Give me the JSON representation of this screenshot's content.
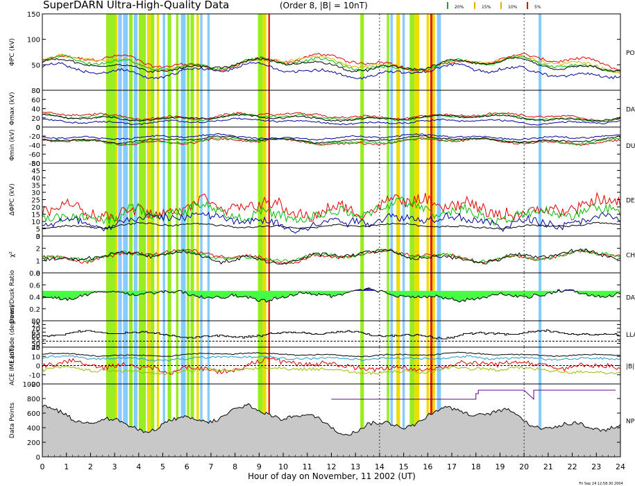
{
  "header": {
    "title": "SuperDARN Ultra-High-Quality Data",
    "subtitle": "(Order 8, |B| = 10nT)",
    "legend": [
      {
        "label": "20%",
        "color": "#1aa31a"
      },
      {
        "label": "15%",
        "color": "#e0b000"
      },
      {
        "label": "10%",
        "color": "#e0b000"
      },
      {
        "label": "5%",
        "color": "#dd0000"
      }
    ]
  },
  "footer": {
    "xlabel": "Hour of day on November, 11 2002 (UT)",
    "stamp": "Fri Sep 24 12:58:30 2004"
  },
  "colors": {
    "lightblue": "#88ccff",
    "green": "#99ee22",
    "gold": "#eedd00",
    "red": "#ee2200",
    "fillgreen": "#44ff44",
    "fillblue": "#2222cc",
    "gray": "#c8c8c8",
    "purple": "#660088"
  },
  "chart_data": {
    "type": "line",
    "xlim": [
      0,
      24
    ],
    "xticks": [
      "0",
      "1",
      "2",
      "3",
      "4",
      "5",
      "6",
      "7",
      "8",
      "9",
      "10",
      "11",
      "12",
      "13",
      "14",
      "15",
      "16",
      "17",
      "18",
      "19",
      "20",
      "21",
      "22",
      "23",
      "24"
    ],
    "dashed_hours": [
      14,
      20
    ],
    "shading": [
      {
        "from": 2.65,
        "to": 3.05,
        "color": "green"
      },
      {
        "from": 3.05,
        "to": 3.12,
        "color": "gold"
      },
      {
        "from": 3.15,
        "to": 3.3,
        "color": "lightblue"
      },
      {
        "from": 3.35,
        "to": 3.55,
        "color": "lightblue"
      },
      {
        "from": 3.6,
        "to": 3.75,
        "color": "green"
      },
      {
        "from": 3.8,
        "to": 3.95,
        "color": "lightblue"
      },
      {
        "from": 4.0,
        "to": 4.3,
        "color": "green"
      },
      {
        "from": 4.35,
        "to": 4.5,
        "color": "gold"
      },
      {
        "from": 4.5,
        "to": 4.65,
        "color": "green"
      },
      {
        "from": 4.75,
        "to": 4.85,
        "color": "gold"
      },
      {
        "from": 5.0,
        "to": 5.1,
        "color": "lightblue"
      },
      {
        "from": 5.2,
        "to": 5.35,
        "color": "green"
      },
      {
        "from": 5.55,
        "to": 5.65,
        "color": "green"
      },
      {
        "from": 5.75,
        "to": 5.95,
        "color": "lightblue"
      },
      {
        "from": 6.0,
        "to": 6.1,
        "color": "green"
      },
      {
        "from": 6.15,
        "to": 6.3,
        "color": "green"
      },
      {
        "from": 6.4,
        "to": 6.5,
        "color": "gold"
      },
      {
        "from": 6.55,
        "to": 6.65,
        "color": "lightblue"
      },
      {
        "from": 6.85,
        "to": 6.95,
        "color": "lightblue"
      },
      {
        "from": 8.95,
        "to": 9.15,
        "color": "green"
      },
      {
        "from": 9.15,
        "to": 9.3,
        "color": "gold"
      },
      {
        "from": 9.38,
        "to": 9.45,
        "color": "red"
      },
      {
        "from": 13.2,
        "to": 13.35,
        "color": "green"
      },
      {
        "from": 14.3,
        "to": 14.4,
        "color": "green"
      },
      {
        "from": 14.45,
        "to": 14.55,
        "color": "lightblue"
      },
      {
        "from": 14.7,
        "to": 14.85,
        "color": "gold"
      },
      {
        "from": 14.95,
        "to": 15.05,
        "color": "lightblue"
      },
      {
        "from": 15.25,
        "to": 15.45,
        "color": "green"
      },
      {
        "from": 15.45,
        "to": 15.65,
        "color": "gold"
      },
      {
        "from": 15.95,
        "to": 16.05,
        "color": "gold"
      },
      {
        "from": 16.1,
        "to": 16.2,
        "color": "red"
      },
      {
        "from": 16.2,
        "to": 16.3,
        "color": "gold"
      },
      {
        "from": 16.38,
        "to": 16.55,
        "color": "lightblue"
      },
      {
        "from": 20.6,
        "to": 20.72,
        "color": "lightblue"
      }
    ],
    "panels": [
      {
        "id": "phipc",
        "ylabel": "ΦPC (kV)",
        "ylim": [
          0,
          150
        ],
        "yticks": [
          0,
          50,
          100,
          150
        ],
        "right_label": "PO PO",
        "series": [
          {
            "name": "red",
            "color": "#dd0000",
            "base": 55,
            "amp": 16,
            "noise": 5
          },
          {
            "name": "gold",
            "color": "#e0b000",
            "base": 53,
            "amp": 15,
            "noise": 5
          },
          {
            "name": "green",
            "color": "#00bb00",
            "base": 51,
            "amp": 15,
            "noise": 5
          },
          {
            "name": "black",
            "color": "#000000",
            "base": 49,
            "amp": 14,
            "noise": 4
          },
          {
            "name": "blue",
            "color": "#000099",
            "base": 38,
            "amp": 14,
            "noise": 5
          }
        ]
      },
      {
        "id": "phimax",
        "ylabel": "Φmax (kV)",
        "ylim": [
          0,
          80
        ],
        "yticks": [
          0,
          20,
          40,
          60,
          80
        ],
        "right_label": "DAY",
        "series": [
          {
            "name": "red",
            "color": "#dd0000",
            "base": 24,
            "amp": 8,
            "noise": 4
          },
          {
            "name": "green",
            "color": "#00bb00",
            "base": 21,
            "amp": 8,
            "noise": 4
          },
          {
            "name": "black",
            "color": "#000000",
            "base": 20,
            "amp": 7,
            "noise": 3
          },
          {
            "name": "blue",
            "color": "#000099",
            "base": 12,
            "amp": 6,
            "noise": 3
          }
        ]
      },
      {
        "id": "phimin",
        "ylabel": "Φmin (kV)",
        "ylim": [
          -80,
          0
        ],
        "yticks": [
          -80,
          -60,
          -40,
          -20,
          0
        ],
        "right_label": "DU",
        "series": [
          {
            "name": "red",
            "color": "#dd0000",
            "base": -32,
            "amp": 8,
            "noise": 4
          },
          {
            "name": "green",
            "color": "#00bb00",
            "base": -30,
            "amp": 8,
            "noise": 4
          },
          {
            "name": "black",
            "color": "#000000",
            "base": -28,
            "amp": 7,
            "noise": 3
          },
          {
            "name": "blue",
            "color": "#000099",
            "base": -22,
            "amp": 6,
            "noise": 3
          }
        ]
      },
      {
        "id": "dphipc",
        "ylabel": "ΔΦPC (kV)",
        "ylim": [
          0,
          50
        ],
        "yticks": [
          0,
          5,
          10,
          15,
          20,
          25,
          30,
          35,
          40,
          45,
          50
        ],
        "right_label": "DE",
        "series": [
          {
            "name": "red",
            "color": "#dd0000",
            "base": 20,
            "amp": 8,
            "noise": 7
          },
          {
            "name": "green",
            "color": "#00bb00",
            "base": 16,
            "amp": 7,
            "noise": 6
          },
          {
            "name": "blue",
            "color": "#000099",
            "base": 11,
            "amp": 4,
            "noise": 5
          },
          {
            "name": "black",
            "color": "#000000",
            "base": 7,
            "amp": 2,
            "noise": 1
          }
        ]
      },
      {
        "id": "chi",
        "ylabel": "χ²",
        "ylim": [
          0,
          3
        ],
        "yticks": [
          0,
          1,
          2,
          3
        ],
        "right_label": "CH",
        "series": [
          {
            "name": "red",
            "color": "#dd0000",
            "base": 1.4,
            "amp": 0.5,
            "noise": 0.25
          },
          {
            "name": "green",
            "color": "#00bb00",
            "base": 1.35,
            "amp": 0.5,
            "noise": 0.25
          },
          {
            "name": "black",
            "color": "#000000",
            "base": 1.3,
            "amp": 0.5,
            "noise": 0.25
          }
        ]
      },
      {
        "id": "ratio",
        "ylabel": "Dawn/Dusk Ratio",
        "ylim": [
          0,
          0.8
        ],
        "yticks": [
          0.0,
          0.2,
          0.4,
          0.6,
          0.8
        ],
        "right_label": "DAY",
        "series": [
          {
            "name": "ratio",
            "color": "#000000",
            "base": 0.42,
            "amp": 0.08,
            "noise": 0.05
          }
        ]
      },
      {
        "id": "lat",
        "ylabel": "Latitude (degrees)",
        "ylim": [
          45,
          80
        ],
        "yticks": [
          45,
          50,
          55,
          60,
          65,
          70,
          75,
          80
        ],
        "right_label": "LLA",
        "series": [
          {
            "name": "boundary",
            "color": "#000000",
            "base": 62,
            "amp": 5,
            "noise": 2
          }
        ]
      },
      {
        "id": "imf",
        "ylabel": "ACE IMF (nT)",
        "ylim": [
          -20,
          20
        ],
        "yticks": [
          -20,
          -10,
          0,
          10,
          20
        ],
        "right_label": "|B|",
        "series": [
          {
            "name": "Bz",
            "color": "#dd0000",
            "base": 0,
            "amp": 5,
            "noise": 5
          },
          {
            "name": "By",
            "color": "#99bb00",
            "base": -5,
            "amp": 3,
            "noise": 3
          },
          {
            "name": "Bx",
            "color": "#2299cc",
            "base": 8,
            "amp": 2,
            "noise": 2
          },
          {
            "name": "B",
            "color": "#000000",
            "base": 12,
            "amp": 2,
            "noise": 1
          }
        ]
      },
      {
        "id": "npts",
        "ylabel": "Data Points",
        "ylim": [
          0,
          1000
        ],
        "yticks": [
          0,
          200,
          400,
          600,
          800,
          1000
        ],
        "right_label": "NP",
        "series": [
          {
            "name": "points",
            "color": "#000000",
            "base": 520,
            "amp": 180,
            "noise": 50
          }
        ]
      }
    ]
  }
}
